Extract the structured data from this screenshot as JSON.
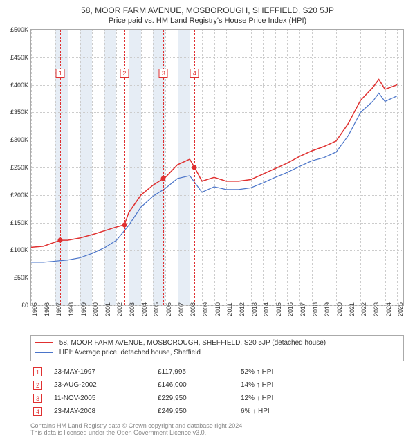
{
  "title_line1": "58, MOOR FARM AVENUE, MOSBOROUGH, SHEFFIELD, S20 5JP",
  "title_line2": "Price paid vs. HM Land Registry's House Price Index (HPI)",
  "chart": {
    "type": "line",
    "x_min": 1995,
    "x_max": 2025.5,
    "y_min": 0,
    "y_max": 500000,
    "y_ticks": [
      0,
      50000,
      100000,
      150000,
      200000,
      250000,
      300000,
      350000,
      400000,
      450000,
      500000
    ],
    "y_tick_labels": [
      "£0",
      "£50K",
      "£100K",
      "£150K",
      "£200K",
      "£250K",
      "£300K",
      "£350K",
      "£400K",
      "£450K",
      "£500K"
    ],
    "x_ticks": [
      1995,
      1996,
      1997,
      1998,
      1999,
      2000,
      2001,
      2002,
      2003,
      2004,
      2005,
      2006,
      2007,
      2008,
      2009,
      2010,
      2011,
      2012,
      2013,
      2014,
      2015,
      2016,
      2017,
      2018,
      2019,
      2020,
      2021,
      2022,
      2023,
      2024,
      2025
    ],
    "band_pairs": [
      [
        1997,
        1998
      ],
      [
        1999,
        2000
      ],
      [
        2001,
        2002
      ],
      [
        2003,
        2004
      ],
      [
        2005,
        2006
      ],
      [
        2007,
        2008
      ]
    ],
    "band_color": "#e6edf5",
    "grid_color": "#cccccc",
    "background": "#ffffff",
    "subject_color": "#e03030",
    "hpi_color": "#4a74c9",
    "marker_color": "#e03030",
    "subject_series": [
      [
        1995,
        105000
      ],
      [
        1996,
        107000
      ],
      [
        1997.4,
        117995
      ],
      [
        1998,
        118000
      ],
      [
        1999,
        122000
      ],
      [
        2000,
        128000
      ],
      [
        2001,
        135000
      ],
      [
        2002,
        142000
      ],
      [
        2002.65,
        146000
      ],
      [
        2003,
        168000
      ],
      [
        2004,
        200000
      ],
      [
        2005,
        218000
      ],
      [
        2005.85,
        229950
      ],
      [
        2006,
        232000
      ],
      [
        2007,
        255000
      ],
      [
        2008,
        265000
      ],
      [
        2008.4,
        249950
      ],
      [
        2009,
        225000
      ],
      [
        2010,
        232000
      ],
      [
        2011,
        225000
      ],
      [
        2012,
        225000
      ],
      [
        2013,
        228000
      ],
      [
        2014,
        238000
      ],
      [
        2015,
        248000
      ],
      [
        2016,
        258000
      ],
      [
        2017,
        270000
      ],
      [
        2018,
        280000
      ],
      [
        2019,
        288000
      ],
      [
        2020,
        298000
      ],
      [
        2021,
        330000
      ],
      [
        2022,
        372000
      ],
      [
        2023,
        395000
      ],
      [
        2023.5,
        410000
      ],
      [
        2024,
        392000
      ],
      [
        2025,
        400000
      ]
    ],
    "hpi_series": [
      [
        1995,
        78000
      ],
      [
        1996,
        78000
      ],
      [
        1997,
        80000
      ],
      [
        1998,
        82000
      ],
      [
        1999,
        86000
      ],
      [
        2000,
        94000
      ],
      [
        2001,
        104000
      ],
      [
        2002,
        118000
      ],
      [
        2003,
        145000
      ],
      [
        2004,
        178000
      ],
      [
        2005,
        198000
      ],
      [
        2006,
        212000
      ],
      [
        2007,
        230000
      ],
      [
        2008,
        235000
      ],
      [
        2009,
        205000
      ],
      [
        2010,
        215000
      ],
      [
        2011,
        210000
      ],
      [
        2012,
        210000
      ],
      [
        2013,
        213000
      ],
      [
        2014,
        222000
      ],
      [
        2015,
        232000
      ],
      [
        2016,
        241000
      ],
      [
        2017,
        252000
      ],
      [
        2018,
        262000
      ],
      [
        2019,
        268000
      ],
      [
        2020,
        278000
      ],
      [
        2021,
        308000
      ],
      [
        2022,
        350000
      ],
      [
        2023,
        370000
      ],
      [
        2023.5,
        385000
      ],
      [
        2024,
        370000
      ],
      [
        2025,
        380000
      ]
    ],
    "events": [
      {
        "n": "1",
        "year": 1997.4,
        "price": 117995,
        "date": "23-MAY-1997",
        "price_str": "£117,995",
        "delta": "52% ↑ HPI"
      },
      {
        "n": "2",
        "year": 2002.65,
        "price": 146000,
        "date": "23-AUG-2002",
        "price_str": "£146,000",
        "delta": "14% ↑ HPI"
      },
      {
        "n": "3",
        "year": 2005.85,
        "price": 229950,
        "date": "11-NOV-2005",
        "price_str": "£229,950",
        "delta": "12% ↑ HPI"
      },
      {
        "n": "4",
        "year": 2008.4,
        "price": 249950,
        "date": "23-MAY-2008",
        "price_str": "£249,950",
        "delta": "6% ↑ HPI"
      }
    ],
    "marker_top_y": 430000
  },
  "legend": {
    "subject_label": "58, MOOR FARM AVENUE, MOSBOROUGH, SHEFFIELD, S20 5JP (detached house)",
    "hpi_label": "HPI: Average price, detached house, Sheffield"
  },
  "footnote_line1": "Contains HM Land Registry data © Crown copyright and database right 2024.",
  "footnote_line2": "This data is licensed under the Open Government Licence v3.0."
}
